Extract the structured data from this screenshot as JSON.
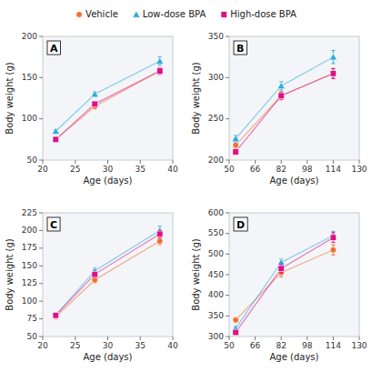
{
  "chart_data": [
    {
      "type": "line",
      "title": "A",
      "x_label": "Age (days)",
      "y_label": "Body weight (g)",
      "x": [
        22,
        28,
        38
      ],
      "xlim": [
        20,
        40
      ],
      "ylim": [
        50,
        200
      ],
      "xticks": [
        20,
        25,
        30,
        35,
        40
      ],
      "yticks": [
        50,
        100,
        150,
        200
      ],
      "legend": "top",
      "series": [
        {
          "name": "Vehicle",
          "color": "#f07030",
          "marker": "circle",
          "values": [
            75,
            115,
            158
          ],
          "yerr": [
            2,
            3,
            4
          ]
        },
        {
          "name": "Low-dose BPA",
          "color": "#30aadd",
          "marker": "triangle",
          "values": [
            85,
            130,
            170
          ],
          "yerr": [
            2,
            3,
            5
          ]
        },
        {
          "name": "High-dose BPA",
          "color": "#dd1188",
          "marker": "square",
          "values": [
            75,
            118,
            158
          ],
          "yerr": [
            2,
            3,
            4
          ]
        }
      ]
    },
    {
      "type": "line",
      "title": "B",
      "x_label": "Age (days)",
      "y_label": "Body weight (g)",
      "x": [
        54,
        82,
        114
      ],
      "xlim": [
        50,
        130
      ],
      "ylim": [
        200,
        350
      ],
      "xticks": [
        50,
        66,
        82,
        98,
        114,
        130
      ],
      "yticks": [
        200,
        250,
        300,
        350
      ],
      "series": [
        {
          "name": "Vehicle",
          "color": "#f07030",
          "marker": "circle",
          "values": [
            218,
            278,
            305
          ],
          "yerr": [
            3,
            5,
            6
          ]
        },
        {
          "name": "Low-dose BPA",
          "color": "#30aadd",
          "marker": "triangle",
          "values": [
            226,
            290,
            325
          ],
          "yerr": [
            4,
            5,
            8
          ]
        },
        {
          "name": "High-dose BPA",
          "color": "#dd1188",
          "marker": "square",
          "values": [
            210,
            278,
            305
          ],
          "yerr": [
            3,
            4,
            6
          ]
        }
      ]
    },
    {
      "type": "line",
      "title": "C",
      "x_label": "Age (days)",
      "y_label": "Body weight (g)",
      "x": [
        22,
        28,
        38
      ],
      "xlim": [
        20,
        40
      ],
      "ylim": [
        50,
        225
      ],
      "xticks": [
        20,
        25,
        30,
        35,
        40
      ],
      "yticks": [
        50,
        75,
        100,
        125,
        150,
        175,
        200,
        225
      ],
      "series": [
        {
          "name": "Vehicle",
          "color": "#f07030",
          "marker": "circle",
          "values": [
            78,
            130,
            185
          ],
          "yerr": [
            2,
            4,
            5
          ]
        },
        {
          "name": "Low-dose BPA",
          "color": "#30aadd",
          "marker": "triangle",
          "values": [
            80,
            143,
            200
          ],
          "yerr": [
            2,
            4,
            6
          ]
        },
        {
          "name": "High-dose BPA",
          "color": "#dd1188",
          "marker": "square",
          "values": [
            80,
            138,
            195
          ],
          "yerr": [
            2,
            4,
            5
          ]
        }
      ]
    },
    {
      "type": "line",
      "title": "D",
      "x_label": "Age (days)",
      "y_label": "Body weight (g)",
      "x": [
        54,
        82,
        114
      ],
      "xlim": [
        50,
        130
      ],
      "ylim": [
        300,
        600
      ],
      "xticks": [
        50,
        66,
        82,
        98,
        114,
        130
      ],
      "yticks": [
        300,
        350,
        400,
        450,
        500,
        550,
        600
      ],
      "series": [
        {
          "name": "Vehicle",
          "color": "#f07030",
          "marker": "circle",
          "values": [
            340,
            455,
            510
          ],
          "yerr": [
            5,
            10,
            12
          ]
        },
        {
          "name": "Low-dose BPA",
          "color": "#30aadd",
          "marker": "triangle",
          "values": [
            320,
            480,
            545
          ],
          "yerr": [
            5,
            8,
            10
          ]
        },
        {
          "name": "High-dose BPA",
          "color": "#dd1188",
          "marker": "square",
          "values": [
            310,
            465,
            540
          ],
          "yerr": [
            5,
            10,
            12
          ]
        }
      ]
    }
  ]
}
